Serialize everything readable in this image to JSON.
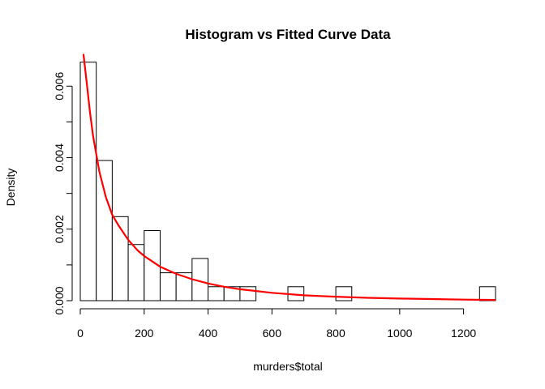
{
  "chart_data": {
    "type": "bar",
    "title": "Histogram vs Fitted Curve Data",
    "xlabel": "murders$total",
    "ylabel": "Density",
    "xlim": [
      0,
      1300
    ],
    "ylim": [
      0,
      0.0068
    ],
    "x_ticks": [
      0,
      200,
      400,
      600,
      800,
      1000,
      1200
    ],
    "y_ticks": [
      0.0,
      0.001,
      0.002,
      0.003,
      0.004,
      0.005,
      0.006
    ],
    "y_tick_labels": [
      "0.000",
      "",
      "0.002",
      "",
      "0.004",
      "",
      "0.006"
    ],
    "bin_width": 50,
    "bins": [
      {
        "start": 0,
        "density": 0.00667
      },
      {
        "start": 50,
        "density": 0.00392
      },
      {
        "start": 100,
        "density": 0.00235
      },
      {
        "start": 150,
        "density": 0.00157
      },
      {
        "start": 200,
        "density": 0.00196
      },
      {
        "start": 250,
        "density": 0.00078
      },
      {
        "start": 300,
        "density": 0.00078
      },
      {
        "start": 350,
        "density": 0.00118
      },
      {
        "start": 400,
        "density": 0.00039
      },
      {
        "start": 450,
        "density": 0.00039
      },
      {
        "start": 500,
        "density": 0.00039
      },
      {
        "start": 550,
        "density": 0.0
      },
      {
        "start": 600,
        "density": 0.0
      },
      {
        "start": 650,
        "density": 0.00039
      },
      {
        "start": 700,
        "density": 0.0
      },
      {
        "start": 750,
        "density": 0.0
      },
      {
        "start": 800,
        "density": 0.00039
      },
      {
        "start": 850,
        "density": 0.0
      },
      {
        "start": 900,
        "density": 0.0
      },
      {
        "start": 950,
        "density": 0.0
      },
      {
        "start": 1000,
        "density": 0.0
      },
      {
        "start": 1050,
        "density": 0.0
      },
      {
        "start": 1100,
        "density": 0.0
      },
      {
        "start": 1150,
        "density": 0.0
      },
      {
        "start": 1200,
        "density": 0.0
      },
      {
        "start": 1250,
        "density": 0.00039
      }
    ],
    "series": [
      {
        "type": "line",
        "color": "#ff0000",
        "x": [
          10,
          20,
          30,
          40,
          50,
          60,
          80,
          100,
          120,
          150,
          180,
          200,
          250,
          300,
          350,
          400,
          450,
          500,
          600,
          700,
          800,
          900,
          1000,
          1100,
          1200,
          1300
        ],
        "y": [
          0.0069,
          0.0061,
          0.0053,
          0.0046,
          0.0041,
          0.0036,
          0.0029,
          0.0024,
          0.0021,
          0.0017,
          0.0014,
          0.00125,
          0.00095,
          0.00075,
          0.0006,
          0.00048,
          0.00039,
          0.00032,
          0.00022,
          0.00015,
          0.00011,
          8e-05,
          6e-05,
          4.5e-05,
          3e-05,
          2e-05
        ]
      }
    ]
  }
}
